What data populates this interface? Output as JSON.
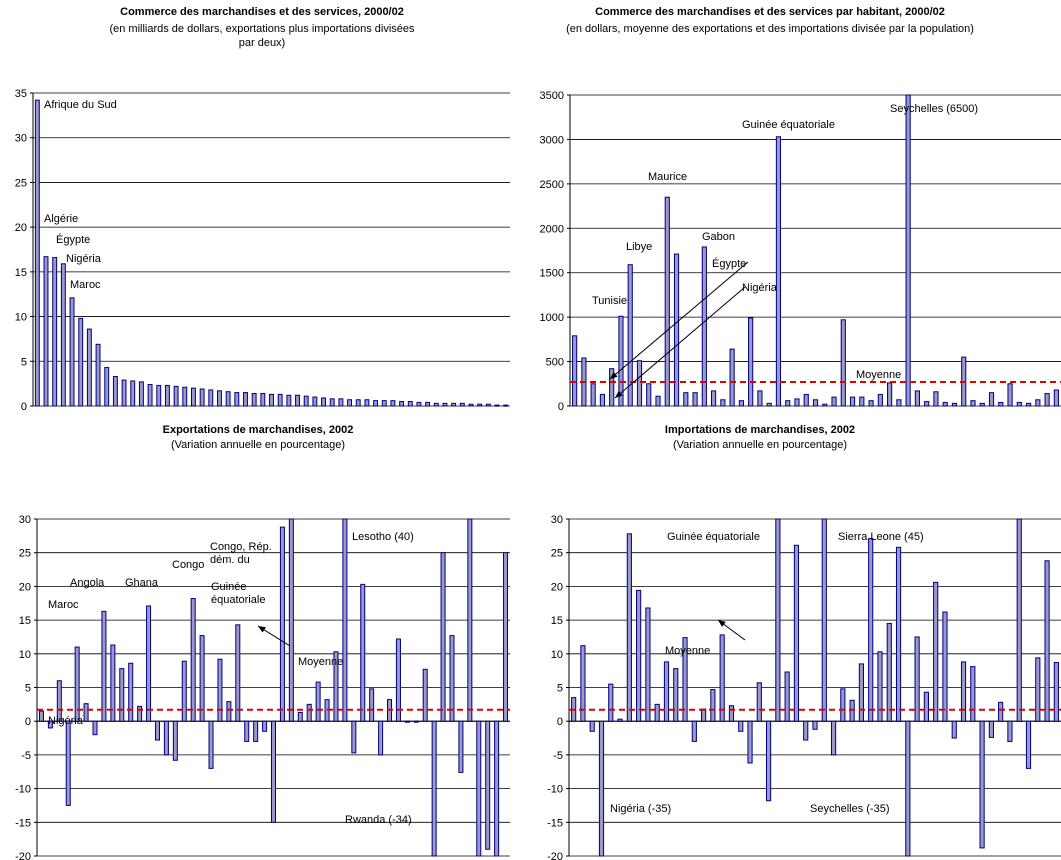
{
  "chart_data": [
    {
      "type": "bar",
      "title": "Commerce des marchandises et des services, 2000/02",
      "subtitle": "(en milliards de dollars, exportations plus importations divisées par deux)",
      "ylim": [
        0,
        35
      ],
      "yticks": [
        0,
        5,
        10,
        15,
        20,
        25,
        30,
        35
      ],
      "grid": true,
      "values": [
        34.2,
        16.7,
        16.6,
        15.9,
        12.1,
        9.8,
        8.6,
        6.9,
        4.3,
        3.3,
        2.9,
        2.8,
        2.7,
        2.4,
        2.3,
        2.3,
        2.2,
        2.1,
        2.0,
        1.9,
        1.8,
        1.7,
        1.6,
        1.5,
        1.5,
        1.4,
        1.4,
        1.3,
        1.3,
        1.2,
        1.2,
        1.1,
        1.0,
        0.9,
        0.8,
        0.8,
        0.7,
        0.7,
        0.7,
        0.6,
        0.6,
        0.6,
        0.5,
        0.5,
        0.4,
        0.4,
        0.3,
        0.3,
        0.3,
        0.3,
        0.2,
        0.2,
        0.2,
        0.1,
        0.1
      ],
      "annotations": [
        {
          "text": "Afrique du Sud",
          "x": 34.2,
          "y": 34.2
        },
        {
          "text": "Algérie",
          "x": 16.7,
          "y": 20.7
        },
        {
          "text": "Égypte",
          "x": 16.6,
          "y": 18.6
        },
        {
          "text": "Nigéria",
          "x": 15.9,
          "y": 16.5
        },
        {
          "text": "Maroc",
          "x": 12.1,
          "y": 13.1
        }
      ]
    },
    {
      "type": "bar",
      "title": "Commerce des marchandises et des services par habitant,  2000/02",
      "subtitle": "(en dollars, moyenne des exportations et des importations divisée par la population)",
      "ylim": [
        0,
        3500
      ],
      "yticks": [
        0,
        500,
        1000,
        1500,
        2000,
        2500,
        3000,
        3500
      ],
      "grid": true,
      "mean_line": 270,
      "mean_label": "Moyenne",
      "values": [
        790,
        540,
        250,
        130,
        420,
        1010,
        1590,
        510,
        250,
        110,
        2350,
        1710,
        150,
        150,
        1790,
        170,
        70,
        640,
        60,
        990,
        170,
        30,
        3030,
        60,
        80,
        130,
        70,
        20,
        100,
        970,
        100,
        100,
        60,
        130,
        260,
        70,
        3500,
        170,
        50,
        160,
        40,
        30,
        550,
        60,
        30,
        150,
        40,
        250,
        40,
        30,
        70,
        140,
        180
      ],
      "annotations": [
        {
          "text": "Tunisie"
        },
        {
          "text": "Libye"
        },
        {
          "text": "Maurice"
        },
        {
          "text": "Gabon"
        },
        {
          "text": "Égypte"
        },
        {
          "text": "Nigéria"
        },
        {
          "text": "Guinée équatoriale"
        },
        {
          "text": "Seychelles (6500)"
        }
      ]
    },
    {
      "type": "bar",
      "title": "Exportations de marchandises, 2002",
      "subtitle": "(Variation annuelle en pourcentage)",
      "ylim": [
        -20,
        30
      ],
      "yticks": [
        -20,
        -15,
        -10,
        -5,
        0,
        5,
        10,
        15,
        20,
        25,
        30
      ],
      "grid": true,
      "mean_line": 1.7,
      "mean_label": "Moyenne",
      "values": [
        1.5,
        -1,
        6,
        -12.5,
        11,
        2.6,
        -2,
        16.3,
        11.3,
        7.8,
        8.6,
        2.2,
        17.1,
        -2.8,
        -5,
        -5.8,
        8.9,
        18.2,
        12.7,
        -7,
        9.2,
        2.9,
        14.3,
        -3,
        -3,
        -1.5,
        -15,
        28.8,
        30,
        1.3,
        2.5,
        5.8,
        3.2,
        10.3,
        30,
        -4.7,
        20.3,
        4.8,
        -5,
        3.2,
        12.2,
        0,
        0,
        7.7,
        -20,
        25,
        12.7,
        -7.6,
        30,
        -20,
        -19,
        -20,
        25
      ],
      "annotations": [
        {
          "text": "Maroc"
        },
        {
          "text": "Angola"
        },
        {
          "text": "Ghana"
        },
        {
          "text": "Congo"
        },
        {
          "text": "Congo, Rép. dém. du"
        },
        {
          "text": "Guinée équatoriale"
        },
        {
          "text": "Lesotho (40)"
        },
        {
          "text": "Nigéria"
        },
        {
          "text": "Rwanda (-34)"
        }
      ]
    },
    {
      "type": "bar",
      "title": "Importations de marchandises, 2002",
      "subtitle": "(Variation annuelle en pourcentage)",
      "ylim": [
        -20,
        30
      ],
      "yticks": [
        -20,
        -15,
        -10,
        -5,
        0,
        5,
        10,
        15,
        20,
        25,
        30
      ],
      "grid": true,
      "mean_line": 1.7,
      "mean_label": "Moyenne",
      "values": [
        3.5,
        11.2,
        -1.5,
        -20,
        5.5,
        0.3,
        27.8,
        19.4,
        16.8,
        2.5,
        8.8,
        7.8,
        12.4,
        -3,
        1.8,
        4.7,
        12.8,
        2.3,
        -1.5,
        -6.2,
        5.7,
        -11.8,
        30,
        7.3,
        26.1,
        -2.8,
        -1.2,
        30,
        -5,
        4.8,
        3.1,
        8.5,
        27.1,
        10.3,
        14.5,
        25.8,
        -20,
        12.5,
        4.3,
        20.6,
        16.2,
        -2.5,
        8.8,
        8.1,
        -18.8,
        -2.4,
        2.8,
        -3,
        30,
        -7,
        9.4,
        23.8,
        8.7
      ],
      "annotations": [
        {
          "text": "Guinée équatoriale"
        },
        {
          "text": "Sierra Leone (45)"
        },
        {
          "text": "Nigéria (-35)"
        },
        {
          "text": "Seychelles (-35)"
        }
      ]
    }
  ]
}
